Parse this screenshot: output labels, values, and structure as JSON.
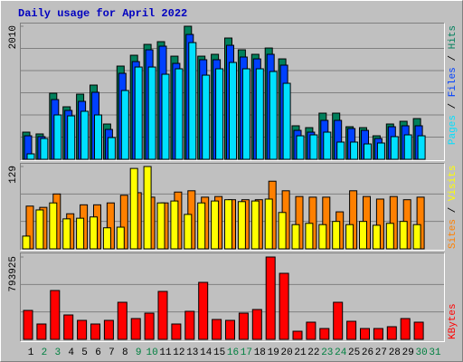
{
  "title": "Daily usage for April 2022",
  "chart_data": [
    {
      "type": "bar",
      "ylim": [
        0,
        2010
      ],
      "yticks": [
        2010
      ],
      "grid": true,
      "legend_separator": " / ",
      "series": [
        {
          "name": "Pages",
          "color": "#00e0ff",
          "values": [
            82,
            314,
            670,
            656,
            725,
            670,
            328,
            1039,
            1394,
            1394,
            1285,
            1367,
            1763,
            1271,
            1367,
            1463,
            1367,
            1367,
            1326,
            1148,
            355,
            369,
            410,
            260,
            260,
            232,
            246,
            342,
            369,
            355,
            0
          ]
        },
        {
          "name": "Files",
          "color": "#0040ff",
          "values": [
            355,
            342,
            902,
            738,
            875,
            1012,
            451,
            1299,
            1476,
            1654,
            1709,
            1449,
            1886,
            1504,
            1504,
            1722,
            1545,
            1517,
            1586,
            1422,
            437,
            410,
            588,
            588,
            465,
            437,
            314,
            492,
            506,
            506,
            0
          ]
        },
        {
          "name": "Hits",
          "color": "#00805c",
          "values": [
            410,
            383,
            998,
            793,
            984,
            1121,
            533,
            1408,
            1572,
            1736,
            1777,
            1558,
            2010,
            1558,
            1586,
            1832,
            1654,
            1586,
            1681,
            1517,
            506,
            478,
            697,
            697,
            492,
            478,
            355,
            533,
            574,
            615,
            0
          ]
        }
      ]
    },
    {
      "type": "bar",
      "ylim": [
        0,
        129
      ],
      "yticks": [
        129
      ],
      "grid": true,
      "legend_separator": " / ",
      "series": [
        {
          "name": "Sites",
          "color": "#ff8000",
          "values": [
            67,
            65,
            86,
            55,
            69,
            69,
            72,
            84,
            88,
            81,
            72,
            89,
            91,
            81,
            82,
            77,
            77,
            77,
            106,
            91,
            82,
            81,
            81,
            58,
            91,
            82,
            78,
            82,
            77,
            81,
            0
          ]
        },
        {
          "name": "Visits",
          "color": "#ffff00",
          "values": [
            20,
            61,
            72,
            47,
            48,
            50,
            33,
            34,
            126,
            129,
            72,
            75,
            54,
            72,
            75,
            77,
            74,
            75,
            78,
            57,
            38,
            40,
            38,
            43,
            38,
            43,
            37,
            40,
            43,
            38,
            0
          ]
        }
      ]
    },
    {
      "type": "bar",
      "ylim": [
        0,
        793925
      ],
      "yticks": [
        793925
      ],
      "grid": true,
      "series": [
        {
          "name": "KBytes",
          "color": "#ff0000",
          "values": [
            279200,
            148300,
            471100,
            235500,
            183200,
            148300,
            183200,
            357700,
            200700,
            253000,
            462400,
            148300,
            270400,
            549600,
            191900,
            183200,
            253000,
            287900,
            793925,
            636900,
            78500,
            165800,
            104700,
            357700,
            174500,
            104700,
            104700,
            122100,
            200700,
            165800,
            0
          ]
        }
      ],
      "categories": [
        "1",
        "2",
        "3",
        "4",
        "5",
        "6",
        "7",
        "8",
        "9",
        "10",
        "11",
        "12",
        "13",
        "14",
        "15",
        "16",
        "17",
        "18",
        "19",
        "20",
        "21",
        "22",
        "23",
        "24",
        "25",
        "26",
        "27",
        "28",
        "29",
        "30",
        "31"
      ],
      "category_colors": [
        "#000000",
        "#008040",
        "#008040",
        "#000000",
        "#000000",
        "#000000",
        "#000000",
        "#000000",
        "#008040",
        "#008040",
        "#000000",
        "#000000",
        "#000000",
        "#000000",
        "#000000",
        "#008040",
        "#008040",
        "#000000",
        "#000000",
        "#000000",
        "#000000",
        "#000000",
        "#008040",
        "#008040",
        "#000000",
        "#000000",
        "#000000",
        "#000000",
        "#000000",
        "#008040",
        "#008040"
      ]
    }
  ]
}
